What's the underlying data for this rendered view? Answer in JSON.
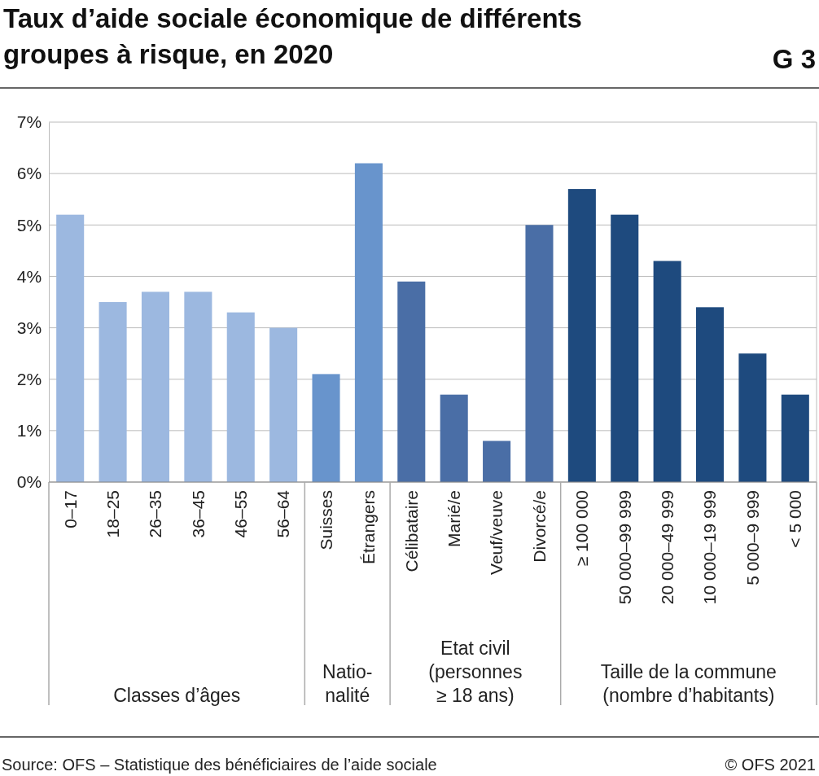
{
  "chart_data": {
    "type": "bar",
    "title": "Taux d’aide sociale économique de différents\ngroupes à risque, en 2020",
    "categories": [
      "0–17",
      "18–25",
      "26–35",
      "36–45",
      "46–55",
      "56–64",
      "Suisses",
      "Étrangers",
      "Célibataire",
      "Marié/e",
      "Veuf/veuve",
      "Divorcé/e",
      "≥ 100 000",
      "50 000–99 999",
      "20 000–49 999",
      "10 000–19 999",
      "5 000–9 999",
      "< 5 000"
    ],
    "values": [
      5.2,
      3.5,
      3.7,
      3.7,
      3.3,
      3.0,
      2.1,
      6.2,
      3.9,
      1.7,
      0.8,
      5.0,
      5.7,
      5.2,
      4.3,
      3.4,
      2.5,
      1.7
    ],
    "colors": [
      "#9cb8e0",
      "#9cb8e0",
      "#9cb8e0",
      "#9cb8e0",
      "#9cb8e0",
      "#9cb8e0",
      "#6894cc",
      "#6894cc",
      "#4a6ea6",
      "#4a6ea6",
      "#4a6ea6",
      "#4a6ea6",
      "#1e4a7e",
      "#1e4a7e",
      "#1e4a7e",
      "#1e4a7e",
      "#1e4a7e",
      "#1e4a7e"
    ],
    "ylim": [
      0,
      7
    ],
    "yticks": [
      {
        "value": 0,
        "label": "0%"
      },
      {
        "value": 1,
        "label": "1%"
      },
      {
        "value": 2,
        "label": "2%"
      },
      {
        "value": 3,
        "label": "3%"
      },
      {
        "value": 4,
        "label": "4%"
      },
      {
        "value": 5,
        "label": "5%"
      },
      {
        "value": 6,
        "label": "6%"
      },
      {
        "value": 7,
        "label": "7%"
      }
    ],
    "grid": "y",
    "annotations": [
      "Classes d’âges",
      "Natio-\nnalité",
      "Etat civil\n(personnes\n≥ 18 ans)",
      "Taille de la commune\n(nombre d’habitants)",
      "G 3",
      "Source: OFS – Statistique des bénéficiaires de l’aide sociale",
      "© OFS 2021"
    ]
  }
}
